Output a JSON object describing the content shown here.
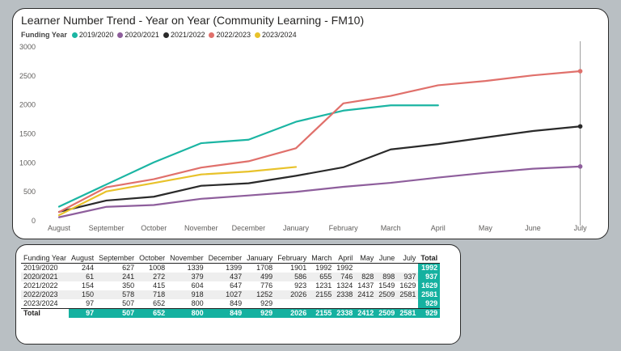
{
  "colors": {
    "2019/2020": "#1bb5a3",
    "2020/2021": "#8e5e9c",
    "2021/2022": "#2a2a2a",
    "2022/2023": "#e0706b",
    "2023/2024": "#e8c22a",
    "accent": "#15b1a0"
  },
  "chart_data": {
    "type": "line",
    "title": "Learner Number Trend - Year on Year (Community Learning - FM10)",
    "legend_title": "Funding Year",
    "legend_position": "top-left",
    "categories": [
      "August",
      "September",
      "October",
      "November",
      "December",
      "January",
      "February",
      "March",
      "April",
      "May",
      "June",
      "July"
    ],
    "y_ticks": [
      "0",
      "500",
      "1000",
      "1500",
      "2000",
      "2500",
      "3000"
    ],
    "ylim": [
      0,
      3000
    ],
    "grid": false,
    "series": [
      {
        "name": "2019/2020",
        "values": [
          244,
          627,
          1008,
          1339,
          1399,
          1708,
          1901,
          1992,
          1992,
          null,
          null,
          null
        ]
      },
      {
        "name": "2020/2021",
        "values": [
          61,
          241,
          272,
          379,
          437,
          499,
          586,
          655,
          746,
          828,
          898,
          937
        ]
      },
      {
        "name": "2021/2022",
        "values": [
          154,
          350,
          415,
          604,
          647,
          776,
          923,
          1231,
          1324,
          1437,
          1549,
          1629
        ]
      },
      {
        "name": "2022/2023",
        "values": [
          150,
          578,
          718,
          918,
          1027,
          1252,
          2026,
          2155,
          2338,
          2412,
          2509,
          2581
        ]
      },
      {
        "name": "2023/2024",
        "values": [
          97,
          507,
          652,
          800,
          849,
          929,
          null,
          null,
          null,
          null,
          null,
          null
        ]
      }
    ]
  },
  "table": {
    "headers": [
      "Funding Year",
      "August",
      "September",
      "October",
      "November",
      "December",
      "January",
      "February",
      "March",
      "April",
      "May",
      "June",
      "July",
      "Total"
    ],
    "rows": [
      [
        "2019/2020",
        "244",
        "627",
        "1008",
        "1339",
        "1399",
        "1708",
        "1901",
        "1992",
        "1992",
        "",
        "",
        "",
        "1992"
      ],
      [
        "2020/2021",
        "61",
        "241",
        "272",
        "379",
        "437",
        "499",
        "586",
        "655",
        "746",
        "828",
        "898",
        "937",
        "937"
      ],
      [
        "2021/2022",
        "154",
        "350",
        "415",
        "604",
        "647",
        "776",
        "923",
        "1231",
        "1324",
        "1437",
        "1549",
        "1629",
        "1629"
      ],
      [
        "2022/2023",
        "150",
        "578",
        "718",
        "918",
        "1027",
        "1252",
        "2026",
        "2155",
        "2338",
        "2412",
        "2509",
        "2581",
        "2581"
      ],
      [
        "2023/2024",
        "97",
        "507",
        "652",
        "800",
        "849",
        "929",
        "",
        "",
        "",
        "",
        "",
        "",
        "929"
      ]
    ],
    "total_row": [
      "Total",
      "97",
      "507",
      "652",
      "800",
      "849",
      "929",
      "2026",
      "2155",
      "2338",
      "2412",
      "2509",
      "2581",
      "929"
    ]
  }
}
